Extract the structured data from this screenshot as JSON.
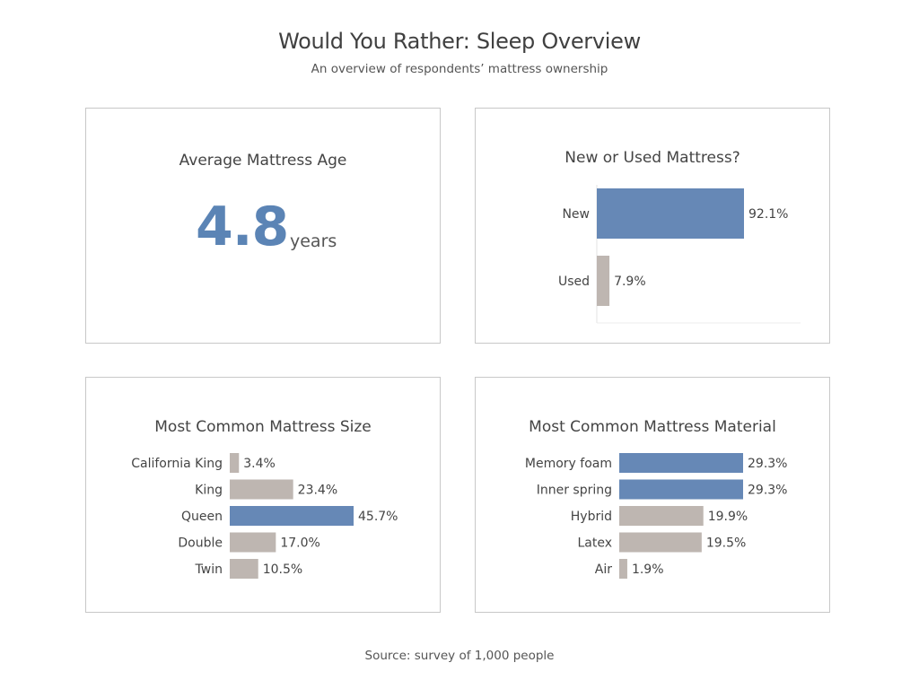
{
  "header": {
    "title": "Would You Rather: Sleep Overview",
    "subtitle": "An overview of respondents’ mattress ownership"
  },
  "kpi": {
    "title": "Average Mattress Age",
    "value": "4.8",
    "unit": "years",
    "color": "#5b84b5"
  },
  "colors": {
    "highlight": "#6688b6",
    "muted": "#beb6b1"
  },
  "chart_data": [
    {
      "type": "bar",
      "orientation": "horizontal",
      "title": "New or Used Mattress?",
      "categories": [
        "New",
        "Used"
      ],
      "values": [
        92.1,
        7.9
      ],
      "labels": [
        "92.1%",
        "7.9%"
      ],
      "highlight": [
        true,
        false
      ],
      "unit": "%"
    },
    {
      "type": "bar",
      "orientation": "horizontal",
      "title": "Most Common Mattress Size",
      "categories": [
        "California King",
        "King",
        "Queen",
        "Double",
        "Twin"
      ],
      "values": [
        3.4,
        23.4,
        45.7,
        17.0,
        10.5
      ],
      "labels": [
        "3.4%",
        "23.4%",
        "45.7%",
        "17.0%",
        "10.5%"
      ],
      "highlight": [
        false,
        false,
        true,
        false,
        false
      ],
      "unit": "%"
    },
    {
      "type": "bar",
      "orientation": "horizontal",
      "title": "Most Common Mattress Material",
      "categories": [
        "Memory foam",
        "Inner spring",
        "Hybrid",
        "Latex",
        "Air"
      ],
      "values": [
        29.3,
        29.3,
        19.9,
        19.5,
        1.9
      ],
      "labels": [
        "29.3%",
        "29.3%",
        "19.9%",
        "19.5%",
        "1.9%"
      ],
      "highlight": [
        true,
        true,
        false,
        false,
        false
      ],
      "unit": "%"
    }
  ],
  "footer": {
    "source": "Source: survey of 1,000 people"
  }
}
